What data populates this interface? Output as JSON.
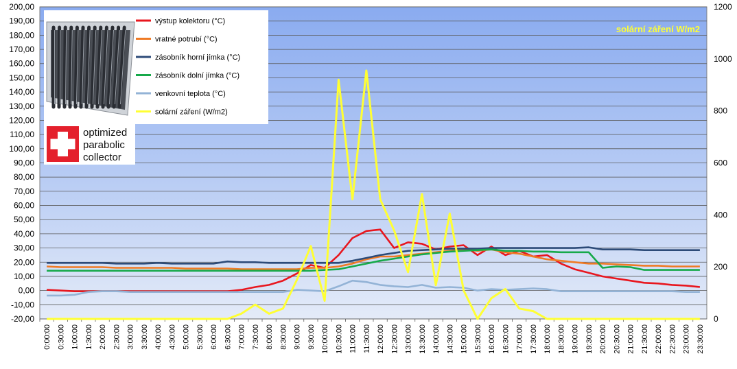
{
  "chart_data": {
    "type": "line",
    "title": "",
    "xlabel": "",
    "ylabel": "",
    "ylim": [
      -20,
      200
    ],
    "y2lim": [
      0,
      1200
    ],
    "grid": true,
    "legend_position": "top-left",
    "y_ticks": [
      "-20,00",
      "-10,00",
      "0,00",
      "10,00",
      "20,00",
      "30,00",
      "40,00",
      "50,00",
      "60,00",
      "70,00",
      "80,00",
      "90,00",
      "100,00",
      "110,00",
      "120,00",
      "130,00",
      "140,00",
      "150,00",
      "160,00",
      "170,00",
      "180,00",
      "190,00",
      "200,00"
    ],
    "y2_ticks": [
      "0",
      "200",
      "400",
      "600",
      "800",
      "1000",
      "1200"
    ],
    "categories": [
      "0:00:00",
      "0:30:00",
      "1:00:00",
      "1:30:00",
      "2:00:00",
      "2:30:00",
      "3:00:00",
      "3:30:00",
      "4:00:00",
      "4:30:00",
      "5:00:00",
      "5:30:00",
      "6:00:00",
      "6:30:00",
      "7:00:00",
      "7:30:00",
      "8:00:00",
      "8:30:00",
      "9:00:00",
      "9:30:00",
      "10:00:00",
      "10:30:00",
      "11:00:00",
      "11:30:00",
      "12:00:00",
      "12:30:00",
      "13:00:00",
      "13:30:00",
      "14:00:00",
      "14:30:00",
      "15:00:00",
      "15:30:00",
      "16:00:00",
      "16:30:00",
      "17:00:00",
      "17:30:00",
      "18:00:00",
      "18:30:00",
      "19:00:00",
      "19:30:00",
      "20:00:00",
      "20:30:00",
      "21:00:00",
      "21:30:00",
      "22:00:00",
      "22:30:00",
      "23:00:00",
      "23:30:00"
    ],
    "annotation": "solární záření W/m2",
    "logo": {
      "line1": "optimized",
      "line2": "parabolic",
      "line3": "collector"
    },
    "series": [
      {
        "name": "výstup kolektoru (°C)",
        "color": "#e8161e",
        "axis": "left",
        "values": [
          0.5,
          0,
          -0.5,
          -0.5,
          -0.5,
          -0.5,
          -0.5,
          -0.5,
          -0.5,
          -0.5,
          -0.5,
          -0.5,
          -0.5,
          -0.5,
          0.5,
          2.5,
          4,
          7,
          12,
          18,
          16,
          25,
          37,
          42,
          43,
          30,
          34,
          33,
          29,
          31,
          32,
          25,
          31,
          25,
          28,
          24,
          25,
          19,
          15,
          12.5,
          10,
          8.5,
          7,
          5.5,
          5,
          4,
          3.5,
          2.5
        ]
      },
      {
        "name": "vratné potrubí (°C)",
        "color": "#ef7a24",
        "axis": "left",
        "values": [
          17,
          16.5,
          16.5,
          16.5,
          16.5,
          16,
          16,
          16,
          16,
          16,
          15.5,
          15.5,
          15.5,
          15.5,
          15,
          15,
          15,
          15,
          15,
          16,
          16,
          17,
          19,
          22,
          24,
          24,
          25,
          26,
          27,
          28,
          29,
          28,
          29,
          27,
          26,
          24,
          22,
          21,
          20,
          19,
          19,
          18.5,
          18,
          17.5,
          17.5,
          17,
          17,
          17
        ]
      },
      {
        "name": "zásobník horní jímka (°C)",
        "color": "#2d4b78",
        "axis": "left",
        "values": [
          19.5,
          19.5,
          19.5,
          19.5,
          19.5,
          19,
          19,
          19,
          19.5,
          19,
          19,
          19,
          19,
          20.5,
          20,
          20,
          19.5,
          19.5,
          19.5,
          19.5,
          19.5,
          19.5,
          21,
          23,
          25,
          26.5,
          28,
          28.5,
          29,
          29.5,
          29.5,
          29.5,
          30,
          30,
          30,
          30,
          30,
          30,
          30,
          30.5,
          29,
          29,
          29,
          28.5,
          28.5,
          28.5,
          28.5,
          28.5
        ]
      },
      {
        "name": "zásobník dolní jímka (°C)",
        "color": "#16a94a",
        "axis": "left",
        "values": [
          14,
          14,
          14,
          14,
          14,
          14,
          14,
          14,
          14,
          14,
          14,
          14,
          14,
          14,
          14,
          14,
          14,
          14,
          14,
          14,
          14.5,
          15,
          17,
          19,
          21,
          22.5,
          24,
          25.5,
          26.5,
          27.5,
          28,
          28.5,
          29,
          28,
          28,
          27.5,
          27.5,
          27,
          27,
          27,
          16,
          17,
          16.5,
          14.5,
          14.5,
          14.5,
          14.5,
          14.5
        ]
      },
      {
        "name": "venkovní teplota (°C)",
        "color": "#93b3d6",
        "axis": "left",
        "values": [
          -3.5,
          -3.5,
          -3,
          -1,
          -0.5,
          -0.5,
          -1,
          -1,
          -1,
          -1,
          -1,
          -1,
          -1,
          -1,
          -1,
          -1,
          -1,
          -1,
          0.5,
          0,
          -0.5,
          3,
          7,
          6,
          4,
          3,
          2.5,
          4,
          2,
          2.5,
          2,
          0,
          1,
          0.5,
          1,
          1.5,
          1,
          -0.5,
          -0.5,
          -0.5,
          -0.5,
          -0.5,
          -0.5,
          -0.5,
          -0.5,
          -0.5,
          -1,
          -1
        ]
      },
      {
        "name": "solární záření (W/m2)",
        "color": "#ffff33",
        "axis": "right",
        "values": [
          0,
          0,
          0,
          0,
          0,
          0,
          0,
          0,
          0,
          0,
          0,
          0,
          0,
          0,
          20,
          55,
          20,
          40,
          150,
          280,
          70,
          920,
          460,
          955,
          460,
          340,
          180,
          480,
          130,
          405,
          110,
          0,
          80,
          115,
          40,
          30,
          0,
          0,
          0,
          0,
          0,
          0,
          0,
          0,
          0,
          0,
          0,
          0
        ]
      }
    ]
  }
}
